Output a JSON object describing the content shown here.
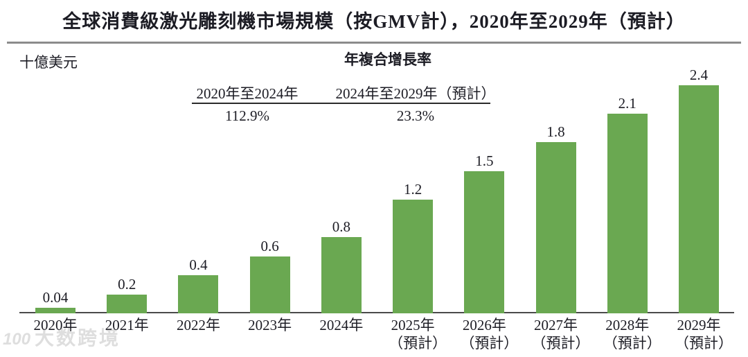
{
  "title": "全球消費級激光雕刻機市場規模（按GMV計），2020年至2029年（預計）",
  "unit_label": "十億美元",
  "cagr": {
    "header": "年複合增長率",
    "columns": [
      {
        "period": "2020年至2024年",
        "value": "112.9%"
      },
      {
        "period": "2024年至2029年（預計）",
        "value": "23.3%"
      }
    ]
  },
  "chart_data": {
    "type": "bar",
    "title": "全球消費級激光雕刻機市場規模（按GMV計），2020年至2029年（預計）",
    "ylabel": "十億美元",
    "xlabel": "",
    "categories": [
      "2020年",
      "2021年",
      "2022年",
      "2023年",
      "2024年",
      "2025年（預計）",
      "2026年（預計）",
      "2027年（預計）",
      "2028年（預計）",
      "2029年（預計）"
    ],
    "values": [
      0.04,
      0.2,
      0.4,
      0.6,
      0.8,
      1.2,
      1.5,
      1.8,
      2.1,
      2.4
    ],
    "value_labels": [
      "0.04",
      "0.2",
      "0.4",
      "0.6",
      "0.8",
      "1.2",
      "1.5",
      "1.8",
      "2.1",
      "2.4"
    ],
    "bar_color": "#6aa851",
    "ylim": [
      0,
      2.6
    ],
    "grid": false,
    "legend": null
  },
  "watermark": {
    "logo": "100",
    "text": "大数跨境"
  }
}
